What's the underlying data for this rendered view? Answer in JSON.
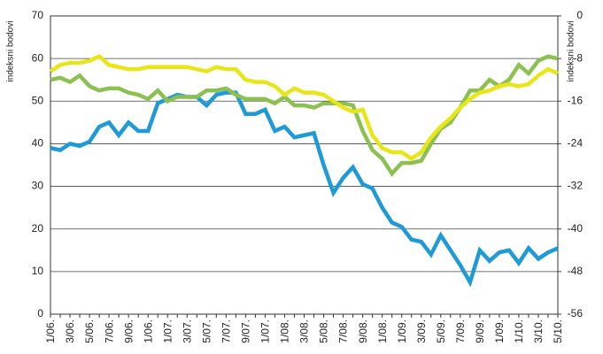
{
  "chart_data": {
    "type": "line",
    "ylabel": "indeksni bodovi",
    "y2label": "indeksni bodovi",
    "categories": [
      "1/06.",
      null,
      "3/06.",
      null,
      "5/06.",
      null,
      "7/06.",
      null,
      "9/06.",
      null,
      "1/06.",
      null,
      "1/07.",
      null,
      "3/07.",
      null,
      "5/07.",
      null,
      "7/07.",
      null,
      "9/07.",
      null,
      "1/07.",
      null,
      "1/08.",
      null,
      "3/08.",
      null,
      "5/08.",
      null,
      "7/08.",
      null,
      "9/08.",
      null,
      "1/08.",
      null,
      "1/09.",
      null,
      "3/09.",
      null,
      "5/09.",
      null,
      "7/09.",
      null,
      "9/09.",
      null,
      "1/09.",
      null,
      "1/10.",
      null,
      "3/10.",
      null,
      "5/10."
    ],
    "series": [
      {
        "color": "#1e9ad6",
        "values": [
          39,
          38.5,
          40,
          39.5,
          40.5,
          44,
          45,
          42,
          45,
          43,
          43,
          49.5,
          50.5,
          51.5,
          51,
          51,
          49,
          51.5,
          52,
          52,
          47,
          47,
          48,
          43,
          44,
          41.5,
          42,
          42.5,
          35,
          28.5,
          32,
          34.5,
          30.5,
          29.5,
          25,
          21.5,
          20.5,
          17.5,
          17,
          14,
          18.5,
          15,
          11.5,
          7.5,
          15,
          12.5,
          14.5,
          15,
          12,
          15.5,
          13,
          14.5,
          15.5
        ]
      },
      {
        "color": "#8cc152",
        "values": [
          55,
          55.5,
          54.5,
          56,
          53.5,
          52.5,
          53,
          53,
          52,
          51.5,
          50.5,
          52.5,
          50,
          51,
          51,
          51,
          52.5,
          52.5,
          53,
          51.5,
          50.5,
          50.5,
          50.5,
          49.5,
          51,
          49,
          49,
          48.5,
          49.5,
          49.5,
          49.5,
          49,
          43,
          38.5,
          36.5,
          33,
          35.5,
          35.5,
          36,
          40,
          43.5,
          45,
          48.5,
          52.5,
          52.5,
          55,
          53.5,
          55,
          58.5,
          56.5,
          59.5,
          60.5,
          60
        ]
      },
      {
        "color": "#e8e619",
        "axis": "y2",
        "values": [
          -10.4,
          -9.2,
          -8.8,
          -8.8,
          -8.4,
          -7.6,
          -9.2,
          -9.6,
          -10,
          -10,
          -9.6,
          -9.6,
          -9.6,
          -9.6,
          -9.6,
          -10,
          -10.4,
          -9.6,
          -10,
          -10,
          -12,
          -12.4,
          -12.4,
          -13.2,
          -14.8,
          -13.6,
          -14.4,
          -14.4,
          -14.8,
          -16,
          -17.2,
          -18,
          -17.6,
          -22.4,
          -24.8,
          -25.6,
          -25.6,
          -26.8,
          -25.6,
          -22.8,
          -20.8,
          -19.2,
          -17.2,
          -15.6,
          -14.4,
          -14,
          -13.2,
          -12.8,
          -13.2,
          -12.8,
          -11.2,
          -10,
          -10.8
        ]
      }
    ],
    "ylim": [
      0,
      70
    ],
    "yticks": [
      0,
      10,
      20,
      30,
      40,
      50,
      60,
      70
    ],
    "y2lim": [
      -56,
      0
    ],
    "y2ticks": [
      0,
      -8,
      -16,
      -24,
      -32,
      -40,
      -48,
      -56
    ],
    "grid": true
  }
}
